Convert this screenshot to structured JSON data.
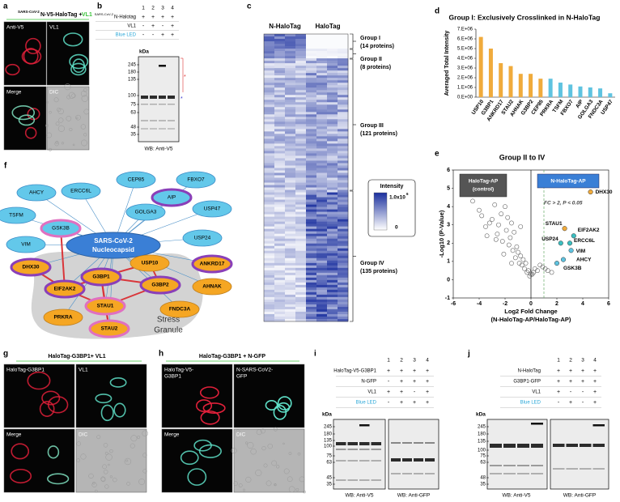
{
  "panels": {
    "a": {
      "label": "a",
      "title_sup": "SARS-CoV-2",
      "title_main": "N-V5-HaloTag + ",
      "title_vl1": "VL1",
      "images": [
        "Anti-V5",
        "VL1",
        "Merge",
        "DIC"
      ]
    },
    "b": {
      "label": "b",
      "lanes": [
        "1",
        "2",
        "3",
        "4"
      ],
      "rows": [
        {
          "sup": "SARS-CoV-2",
          "label": "N-Halotag",
          "signs": [
            "+",
            "+",
            "+",
            "+"
          ]
        },
        {
          "label": "VL1",
          "signs": [
            "-",
            "+",
            "-",
            "+"
          ]
        },
        {
          "label": "Blue LED",
          "signs": [
            "-",
            "-",
            "+",
            "+"
          ]
        }
      ],
      "kda": "kDa",
      "markers": [
        "245",
        "180",
        "135",
        "100",
        "75",
        "63",
        "48",
        "35"
      ],
      "footer": "WB: Anti-V5"
    },
    "c": {
      "label": "c",
      "columns": [
        "N-HaloTag",
        "HaloTag"
      ],
      "groups": [
        {
          "name": "Group I",
          "count": "(14 proteins)"
        },
        {
          "name": "Group II",
          "count": "(8 proteins)"
        },
        {
          "name": "Group III",
          "count": "(121 proteins)"
        },
        {
          "name": "Group IV",
          "count": "(135 proteins)"
        }
      ],
      "legend_title": "Intensity",
      "legend_max": "1.0x10",
      "legend_max_exp": "6",
      "legend_min": "0"
    },
    "d": {
      "label": "d",
      "chart_data": {
        "type": "bar",
        "title": "Group I: Exclusively Crosslinked in N-HaloTag",
        "y_label": "Averaged Total Intensity",
        "categories": [
          "USP10",
          "G3BP1",
          "ANKRD17",
          "STAU2",
          "AHNAK",
          "G3BP2",
          "CEP85",
          "PRKRA",
          "TSFM",
          "FBXO7",
          "AIP",
          "GOLGA3",
          "FNDC3A",
          "USP47"
        ],
        "values": [
          6200000,
          5000000,
          3500000,
          3200000,
          2400000,
          2400000,
          1900000,
          1900000,
          1500000,
          1300000,
          1100000,
          1000000,
          900000,
          400000
        ],
        "colors": [
          "#f0ab3c",
          "#f0ab3c",
          "#f0ab3c",
          "#f0ab3c",
          "#f0ab3c",
          "#f0ab3c",
          "#f0ab3c",
          "#5fc3e0",
          "#5fc3e0",
          "#5fc3e0",
          "#5fc3e0",
          "#5fc3e0",
          "#5fc3e0",
          "#5fc3e0"
        ],
        "ylim": [
          0,
          7000000
        ],
        "yticks": [
          {
            "value": 0,
            "label": "0.E+00"
          },
          {
            "value": 1000000,
            "label": "1.E+06"
          },
          {
            "value": 2000000,
            "label": "2.E+06"
          },
          {
            "value": 3000000,
            "label": "3.E+06"
          },
          {
            "value": 4000000,
            "label": "4.E+06"
          },
          {
            "value": 5000000,
            "label": "5.E+06"
          },
          {
            "value": 6000000,
            "label": "6.E+06"
          },
          {
            "value": 7000000,
            "label": "7.E+06"
          }
        ]
      }
    },
    "e": {
      "label": "e",
      "chart_data": {
        "type": "scatter",
        "title": "Group II to IV",
        "x_label": "Log2 Fold Change",
        "x_label2": "(N-HaloTag-AP/HaloTag-AP)",
        "y_label": "-Log10 (P-Value)",
        "control_box": "HaloTag-AP",
        "control_sub": "(control)",
        "target_box": "N-HaloTag-AP",
        "threshold_text": "FC > 2, P < 0.05",
        "threshold_line_x": 1,
        "x": [
          -4.5,
          -4.0,
          -3.8,
          -3.5,
          -3.2,
          -3.0,
          -2.8,
          -2.6,
          -2.5,
          -2.3,
          -2.2,
          -2.0,
          -1.9,
          -1.8,
          -1.7,
          -1.6,
          -1.5,
          -1.4,
          -1.3,
          -1.2,
          -1.1,
          -1.0,
          -0.9,
          -0.8,
          -0.7,
          -0.6,
          -0.5,
          -0.4,
          -0.3,
          -0.2,
          -0.1,
          0.1,
          0.2,
          0.3,
          0.5,
          0.7,
          0.9,
          1.1,
          1.3,
          1.6,
          -2.7,
          -2.1,
          -3.4,
          -1.5,
          -0.8,
          0.0
        ],
        "y": [
          4.3,
          3.8,
          3.5,
          2.9,
          3.1,
          3.3,
          4.1,
          2.5,
          3.0,
          3.6,
          2.1,
          4.0,
          2.7,
          3.4,
          1.9,
          2.3,
          3.1,
          1.6,
          2.6,
          1.2,
          1.8,
          1.5,
          0.9,
          1.3,
          0.8,
          1.1,
          0.6,
          0.9,
          0.4,
          0.5,
          0.2,
          0.3,
          0.4,
          0.6,
          0.5,
          0.8,
          0.7,
          0.6,
          0.5,
          0.4,
          2.2,
          1.4,
          2.4,
          0.9,
          2.9,
          0.3
        ],
        "labeled": [
          {
            "label": "DHX30",
            "x": 4.6,
            "y": 4.8,
            "color": "#f0ab3c"
          },
          {
            "label": "STAU1",
            "x": 2.6,
            "y": 2.8,
            "color": "#f0ab3c"
          },
          {
            "label": "EIF2AK2",
            "x": 3.3,
            "y": 2.4,
            "color": "#3bbfc1"
          },
          {
            "label": "USP24",
            "x": 2.3,
            "y": 2.0,
            "color": "#3bbfc1"
          },
          {
            "label": "ERCC6L",
            "x": 3.0,
            "y": 2.0,
            "color": "#3bbfc1"
          },
          {
            "label": "VIM",
            "x": 3.1,
            "y": 1.6,
            "color": "#5fc3e0"
          },
          {
            "label": "AHCY",
            "x": 2.5,
            "y": 1.1,
            "color": "#5fc3e0"
          },
          {
            "label": "GSK3B",
            "x": 2.0,
            "y": 0.9,
            "color": "#5fc3e0"
          }
        ],
        "xlim": [
          -6,
          6
        ],
        "xticks": [
          -6,
          -4,
          -2,
          0,
          2,
          4,
          6
        ],
        "ylim": [
          -1,
          6
        ],
        "yticks": [
          -1,
          0,
          1,
          2,
          3,
          4,
          5,
          6
        ]
      }
    },
    "f": {
      "label": "f",
      "nodes": [
        "AHCY",
        "ERCC6L",
        "CEP85",
        "AIP",
        "FBXO7",
        "GOLGA3",
        "USP47",
        "TSFM",
        "GSK3B",
        "VIM",
        "USP24",
        "ANKRD17",
        "DHX30",
        "USP10",
        "AHNAK",
        "G3BP1",
        "G3BP2",
        "EIF2AK2",
        "FNDC3A",
        "STAU1",
        "PRKRA",
        "STAU2"
      ],
      "center": [
        "SARS-CoV-2",
        "Nucleocapsid"
      ],
      "region": [
        "Stress",
        "Granule"
      ]
    },
    "g": {
      "label": "g",
      "title": "HaloTag-G3BP1+ VL1",
      "images": [
        "HaloTag-G3BP1",
        "VL1",
        "Merge",
        "DIC"
      ]
    },
    "h": {
      "label": "h",
      "title": "HaloTag-G3BP1 + N-GFP",
      "images": [
        "HaloTag-V5-G3BP1",
        "N-SARS-CoV2-GFP",
        "Merge",
        "DIC"
      ],
      "image_lines": [
        [
          "HaloTag-V5-",
          "G3BP1"
        ],
        [
          "N-SARS-CoV2-",
          "GFP"
        ]
      ]
    },
    "i": {
      "label": "i",
      "lanes": [
        "1",
        "2",
        "3",
        "4"
      ],
      "rows": [
        {
          "label": "HaloTag-V5-G3BP1",
          "signs": [
            "+",
            "+",
            "+",
            "+"
          ]
        },
        {
          "label": "N-GFP",
          "signs": [
            "-",
            "+",
            "+",
            "+"
          ]
        },
        {
          "label": "VL1",
          "signs": [
            "+",
            "+",
            "-",
            "+"
          ]
        },
        {
          "label": "Blue LED",
          "signs": [
            "-",
            "+",
            "+",
            "+"
          ]
        }
      ],
      "kda": "kDa",
      "markers": [
        "245",
        "180",
        "135",
        "100",
        "75",
        "63",
        "45",
        "35"
      ],
      "footers": [
        "WB: Anti-V5",
        "WB: Anti-GFP"
      ]
    },
    "j": {
      "label": "j",
      "lanes": [
        "1",
        "2",
        "3",
        "4"
      ],
      "rows": [
        {
          "label": "N-HaloTag",
          "signs": [
            "+",
            "+",
            "+",
            "+"
          ]
        },
        {
          "label": "G3BP1-GFP",
          "signs": [
            "+",
            "+",
            "+",
            "+"
          ]
        },
        {
          "label": "VL1",
          "signs": [
            "+",
            "-",
            "-",
            "+"
          ]
        },
        {
          "label": "Blue LED",
          "signs": [
            "-",
            "+",
            "-",
            "+"
          ]
        }
      ],
      "kda": "kDa",
      "markers": [
        "245",
        "180",
        "135",
        "100",
        "75",
        "63",
        "48",
        "35"
      ],
      "footers": [
        "WB: Anti-V5",
        "WB: Anti-GFP"
      ]
    }
  }
}
